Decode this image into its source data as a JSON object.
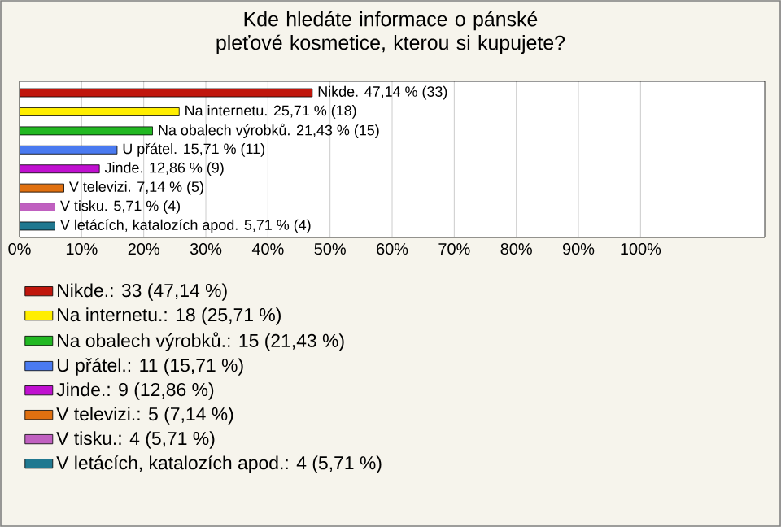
{
  "chart_data": {
    "type": "bar",
    "orientation": "horizontal",
    "title": "Kde hledáte informace o pánské pleťové kosmetice, kterou si kupujete?",
    "categories": [
      null,
      null,
      null,
      null,
      null,
      null,
      null,
      null
    ],
    "series": [
      {
        "name": "Nikde.: 33 (47,14 %)",
        "color": "#c0160c",
        "values": [
          47.14,
          null,
          null,
          null,
          null,
          null,
          null,
          null
        ],
        "value_labels": [
          "Nikde. 47,14 % (33)",
          null,
          null,
          null,
          null,
          null,
          null,
          null
        ]
      },
      {
        "name": "Na internetu.: 18 (25,71 %)",
        "color": "#ffee00",
        "values": [
          null,
          25.71,
          null,
          null,
          null,
          null,
          null,
          null
        ],
        "value_labels": [
          null,
          "Na internetu. 25,71 % (18)",
          null,
          null,
          null,
          null,
          null,
          null
        ]
      },
      {
        "name": "Na obalech výrobků.: 15 (21,43 %)",
        "color": "#22b822",
        "values": [
          null,
          null,
          21.43,
          null,
          null,
          null,
          null,
          null
        ],
        "value_labels": [
          null,
          null,
          "Na obalech výrobků. 21,43 % (15)",
          null,
          null,
          null,
          null,
          null
        ]
      },
      {
        "name": "U přátel.: 11 (15,71 %)",
        "color": "#4a7af0",
        "values": [
          null,
          null,
          null,
          15.71,
          null,
          null,
          null,
          null
        ],
        "value_labels": [
          null,
          null,
          null,
          "U přátel. 15,71 % (11)",
          null,
          null,
          null,
          null
        ]
      },
      {
        "name": "Jinde.: 9 (12,86 %)",
        "color": "#c010d0",
        "values": [
          null,
          null,
          null,
          null,
          12.86,
          null,
          null,
          null
        ],
        "value_labels": [
          null,
          null,
          null,
          null,
          "Jinde. 12,86 % (9)",
          null,
          null,
          null
        ]
      },
      {
        "name": "V televizi.: 5 (7,14 %)",
        "color": "#e07010",
        "values": [
          null,
          null,
          null,
          null,
          null,
          7.14,
          null,
          null
        ],
        "value_labels": [
          null,
          null,
          null,
          null,
          null,
          "V televizi. 7,14 % (5)",
          null,
          null
        ]
      },
      {
        "name": "V tisku.: 4 (5,71 %)",
        "color": "#c060c0",
        "values": [
          null,
          null,
          null,
          null,
          null,
          null,
          5.71,
          null
        ],
        "value_labels": [
          null,
          null,
          null,
          null,
          null,
          null,
          "V tisku. 5,71 % (4)",
          null
        ]
      },
      {
        "name": "V letácích, katalozích apod.: 4 (5,71 %)",
        "color": "#207890",
        "values": [
          null,
          null,
          null,
          null,
          null,
          null,
          null,
          5.71
        ],
        "value_labels": [
          null,
          null,
          null,
          null,
          null,
          null,
          null,
          "V letácích, katalozích apod. 5,71 % (4)"
        ]
      }
    ],
    "xlim": [
      0,
      120
    ],
    "xticks": [
      {
        "value": 0,
        "label": "0%"
      },
      {
        "value": 10,
        "label": "10%"
      },
      {
        "value": 20,
        "label": "20%"
      },
      {
        "value": 30,
        "label": "30%"
      },
      {
        "value": 40,
        "label": "40%"
      },
      {
        "value": 50,
        "label": "50%"
      },
      {
        "value": 60,
        "label": "60%"
      },
      {
        "value": 70,
        "label": "70%"
      },
      {
        "value": 80,
        "label": "80%"
      },
      {
        "value": 90,
        "label": "90%"
      },
      {
        "value": 100,
        "label": "100%"
      }
    ],
    "grid": "x",
    "legend": "bottom"
  }
}
